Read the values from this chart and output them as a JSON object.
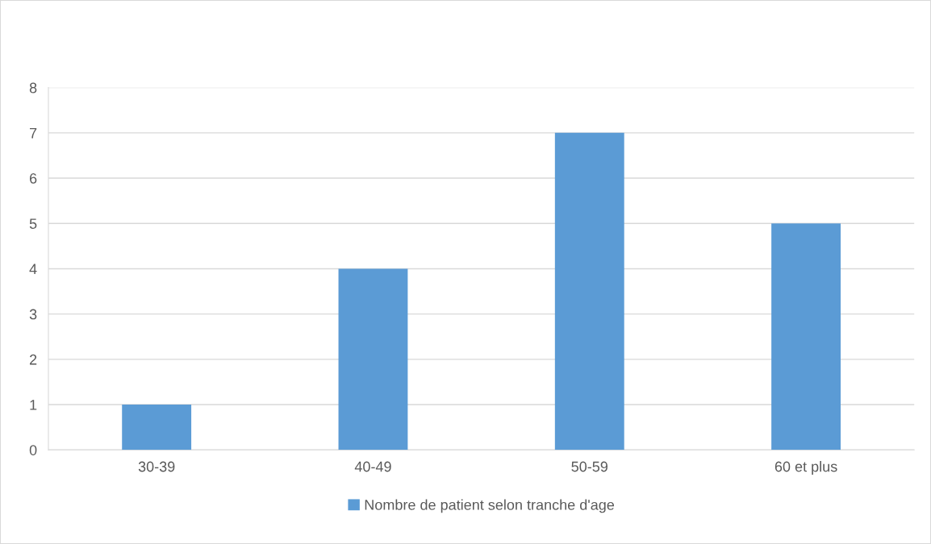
{
  "chart_data": {
    "type": "bar",
    "categories": [
      "30-39",
      "40-49",
      "50-59",
      "60 et plus"
    ],
    "series": [
      {
        "name": "Nombre de patient selon tranche d'age",
        "color": "#5b9bd5",
        "values": [
          1,
          4,
          7,
          5
        ]
      }
    ],
    "ylim": [
      0,
      8
    ],
    "yticks": [
      0,
      1,
      2,
      3,
      4,
      5,
      6,
      7,
      8
    ],
    "grid": "y",
    "legend": "bottom"
  }
}
